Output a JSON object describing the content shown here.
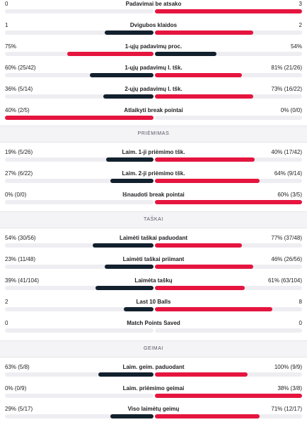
{
  "serve_rows": [
    {
      "label": "Padavimai be atsako",
      "left": "0",
      "right": "3",
      "left_ratio": 0,
      "right_ratio": 1
    },
    {
      "label": "Dvigubos klaidos",
      "left": "1",
      "right": "2",
      "left_ratio": 0.33,
      "right_ratio": 0.67
    },
    {
      "label": "1-ųjų padavimų proc.",
      "left": "75%",
      "right": "54%",
      "left_ratio": 0.58,
      "right_ratio": 0.42
    },
    {
      "label": "1-ųjų padavimų l. tšk.",
      "left": "60% (25/42)",
      "right": "81% (21/26)",
      "left_ratio": 0.43,
      "right_ratio": 0.59
    },
    {
      "label": "2-ųjų padavimų l. tšk.",
      "left": "36% (5/14)",
      "right": "73% (16/22)",
      "left_ratio": 0.34,
      "right_ratio": 0.67
    },
    {
      "label": "Atlaikyti break pointai",
      "left": "40% (2/5)",
      "right": "0% (0/0)",
      "left_ratio": 1,
      "right_ratio": 0
    }
  ],
  "sections": {
    "return": "PRIĖMIMAS",
    "points": "TAŠKAI",
    "games": "GEIMAI"
  },
  "return_rows": [
    {
      "label": "Laim. 1-ji priėmimo tšk.",
      "left": "19% (5/26)",
      "right": "40% (17/42)",
      "left_ratio": 0.32,
      "right_ratio": 0.68
    },
    {
      "label": "Laim. 2-ji priėmimo tšk.",
      "left": "27% (6/22)",
      "right": "64% (9/14)",
      "left_ratio": 0.29,
      "right_ratio": 0.71
    },
    {
      "label": "Išnaudoti break pointai",
      "left": "0% (0/0)",
      "right": "60% (3/5)",
      "left_ratio": 0,
      "right_ratio": 1
    }
  ],
  "points_rows": [
    {
      "label": "Laimėti taškai paduodant",
      "left": "54% (30/56)",
      "right": "77% (37/48)",
      "left_ratio": 0.41,
      "right_ratio": 0.59
    },
    {
      "label": "Laimėti taškai priimant",
      "left": "23% (11/48)",
      "right": "46% (26/56)",
      "left_ratio": 0.33,
      "right_ratio": 0.67
    },
    {
      "label": "Laimėta taškų",
      "left": "39% (41/104)",
      "right": "61% (63/104)",
      "left_ratio": 0.39,
      "right_ratio": 0.61
    },
    {
      "label": "Last 10 Balls",
      "left": "2",
      "right": "8",
      "left_ratio": 0.2,
      "right_ratio": 0.8
    },
    {
      "label": "Match Points Saved",
      "left": "0",
      "right": "0",
      "left_ratio": 0,
      "right_ratio": 0
    }
  ],
  "games_rows": [
    {
      "label": "Laim. geim. paduodant",
      "left": "63% (5/8)",
      "right": "100% (9/9)",
      "left_ratio": 0.37,
      "right_ratio": 0.63
    },
    {
      "label": "Laim. priėmimo geimai",
      "left": "0% (0/9)",
      "right": "38% (3/8)",
      "left_ratio": 0,
      "right_ratio": 1
    },
    {
      "label": "Viso laimėtų geimų",
      "left": "29% (5/17)",
      "right": "71% (12/17)",
      "left_ratio": 0.29,
      "right_ratio": 0.71
    }
  ],
  "colors": {
    "left_bar": "#13202d",
    "right_bar": "#e5153f",
    "track": "#eeeef2"
  }
}
